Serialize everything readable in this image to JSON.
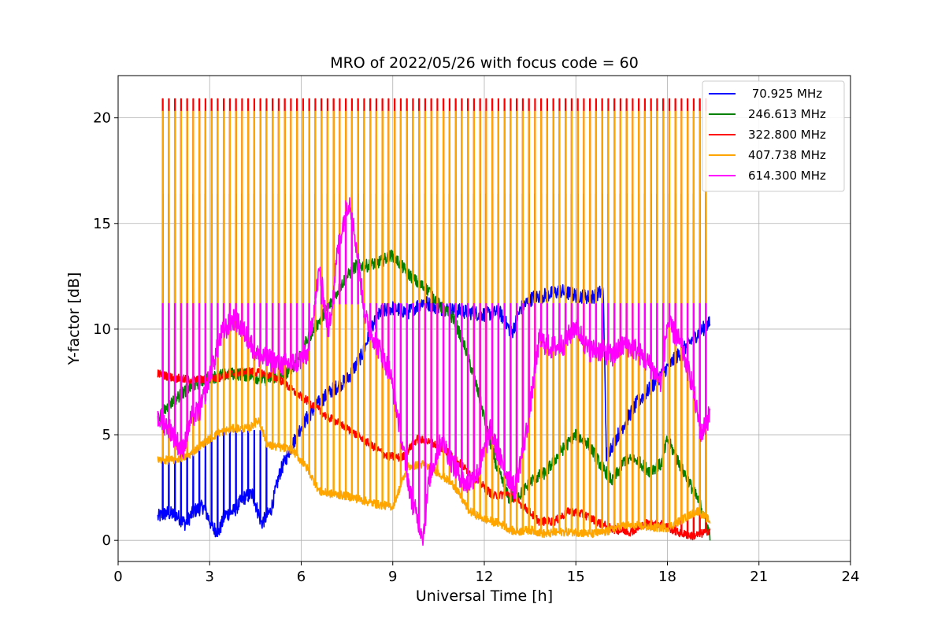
{
  "chart_data": {
    "type": "line",
    "title": "MRO of 2022/05/26 with focus code = 60",
    "xlabel": "Universal Time [h]",
    "ylabel": "Y-factor [dB]",
    "xlim": [
      0,
      24
    ],
    "ylim": [
      -1,
      22
    ],
    "xticks": [
      0,
      3,
      6,
      9,
      12,
      15,
      18,
      21,
      24
    ],
    "xtick_labels": [
      "0",
      "3",
      "6",
      "9",
      "12",
      "15",
      "18",
      "21",
      "24"
    ],
    "yticks": [
      0,
      5,
      10,
      15,
      20
    ],
    "ytick_labels": [
      "0",
      "5",
      "10",
      "15",
      "20"
    ],
    "grid": true,
    "legend_position": "top-right",
    "calibration_pulses": {
      "start_hour": 1.45,
      "end_hour": 19.35,
      "interval_hours": 0.2,
      "peak_values": {
        "70.925 MHz": 5.2,
        "246.613 MHz": 16.4,
        "322.800 MHz": 20.9,
        "407.738 MHz": 20.3,
        "614.300 MHz": 11.2
      },
      "note_visible_until_hour": {
        "70.925 MHz": 5.0
      }
    },
    "series": [
      {
        "name": " 70.925 MHz",
        "color": "#0000ff",
        "x": [
          1.3,
          1.6,
          1.9,
          2.2,
          2.5,
          2.8,
          3.1,
          3.3,
          3.5,
          3.8,
          4.1,
          4.4,
          4.7,
          5.0,
          5.3,
          5.6,
          6.0,
          6.5,
          7.0,
          7.5,
          8.0,
          8.3,
          8.6,
          9.0,
          9.5,
          10.0,
          10.5,
          11.0,
          11.5,
          12.0,
          12.5,
          12.9,
          13.2,
          13.6,
          14.0,
          14.5,
          15.0,
          15.5,
          15.9,
          16.0,
          16.3,
          16.7,
          17.0,
          17.5,
          18.0,
          18.5,
          19.0,
          19.4
        ],
        "y": [
          1.1,
          1.3,
          1.2,
          0.8,
          1.4,
          1.6,
          0.6,
          0.4,
          1.2,
          1.4,
          2.0,
          2.2,
          0.8,
          1.4,
          3.2,
          4.2,
          5.4,
          6.4,
          7.1,
          7.6,
          8.8,
          10.0,
          10.8,
          11.0,
          10.8,
          11.3,
          11.0,
          10.9,
          10.8,
          10.7,
          10.8,
          9.8,
          11.0,
          11.5,
          11.6,
          11.8,
          11.6,
          11.5,
          11.8,
          4.0,
          4.8,
          5.8,
          6.5,
          7.3,
          8.2,
          9.0,
          9.8,
          10.3
        ]
      },
      {
        "name": "246.613 MHz",
        "color": "#008000",
        "x": [
          1.3,
          1.8,
          2.3,
          2.8,
          3.3,
          3.8,
          4.3,
          4.8,
          5.3,
          5.6,
          5.9,
          6.2,
          6.6,
          7.0,
          7.4,
          7.8,
          8.2,
          8.6,
          9.0,
          9.4,
          9.8,
          10.2,
          10.6,
          11.0,
          11.4,
          11.8,
          12.1,
          12.4,
          12.8,
          13.2,
          13.6,
          14.0,
          14.5,
          15.0,
          15.4,
          15.8,
          16.2,
          16.6,
          17.0,
          17.4,
          17.8,
          18.0,
          18.4,
          18.8,
          19.2,
          19.4
        ],
        "y": [
          5.8,
          6.6,
          7.2,
          7.6,
          7.8,
          7.9,
          7.8,
          7.6,
          7.8,
          8.0,
          8.6,
          9.5,
          10.4,
          11.3,
          12.3,
          13.0,
          13.0,
          13.2,
          13.5,
          12.8,
          12.2,
          11.8,
          11.0,
          10.5,
          9.0,
          7.0,
          5.2,
          3.5,
          2.0,
          2.2,
          2.9,
          3.2,
          4.2,
          5.0,
          4.6,
          3.6,
          2.8,
          3.8,
          3.8,
          3.3,
          3.6,
          4.8,
          3.6,
          2.5,
          1.3,
          0.2
        ]
      },
      {
        "name": "322.800 MHz",
        "color": "#ff0000",
        "x": [
          1.3,
          1.8,
          2.3,
          2.8,
          3.3,
          3.8,
          4.3,
          4.8,
          5.3,
          5.8,
          6.3,
          6.8,
          7.3,
          7.8,
          8.3,
          8.8,
          9.3,
          9.8,
          10.3,
          10.8,
          11.3,
          11.8,
          12.3,
          12.8,
          13.3,
          13.8,
          14.3,
          14.8,
          15.3,
          15.8,
          16.3,
          16.8,
          17.3,
          17.8,
          18.3,
          18.8,
          19.1,
          19.4
        ],
        "y": [
          7.9,
          7.7,
          7.6,
          7.6,
          7.7,
          7.9,
          8.0,
          7.9,
          7.6,
          7.0,
          6.5,
          5.9,
          5.5,
          5.0,
          4.5,
          4.0,
          3.9,
          4.8,
          4.6,
          4.2,
          3.5,
          2.8,
          2.1,
          2.2,
          1.6,
          0.9,
          0.9,
          1.4,
          1.2,
          0.8,
          0.5,
          0.4,
          0.8,
          0.8,
          0.4,
          0.2,
          0.3,
          0.5
        ]
      },
      {
        "name": "407.738 MHz",
        "color": "#ffa500",
        "x": [
          1.3,
          1.8,
          2.3,
          2.8,
          3.3,
          3.8,
          4.3,
          4.6,
          4.9,
          5.3,
          5.7,
          6.2,
          6.6,
          7.0,
          7.5,
          8.0,
          8.5,
          9.0,
          9.5,
          10.0,
          10.5,
          11.0,
          11.5,
          12.0,
          12.5,
          13.0,
          13.5,
          14.0,
          14.5,
          15.0,
          15.5,
          16.0,
          16.5,
          17.0,
          17.5,
          18.0,
          18.5,
          19.0,
          19.4
        ],
        "y": [
          3.8,
          3.8,
          4.0,
          4.6,
          5.1,
          5.3,
          5.3,
          5.7,
          4.5,
          4.4,
          4.3,
          3.4,
          2.3,
          2.2,
          2.1,
          1.9,
          1.7,
          1.6,
          3.5,
          3.6,
          3.2,
          2.6,
          1.4,
          1.0,
          0.8,
          0.4,
          0.5,
          0.3,
          0.4,
          0.4,
          0.3,
          0.4,
          0.7,
          0.7,
          0.6,
          0.6,
          1.0,
          1.4,
          0.9
        ]
      },
      {
        "name": "614.300 MHz",
        "color": "#ff00ff",
        "x": [
          1.3,
          1.7,
          2.1,
          2.4,
          2.7,
          3.0,
          3.4,
          3.8,
          4.2,
          4.6,
          5.0,
          5.4,
          5.8,
          6.2,
          6.6,
          6.9,
          7.2,
          7.5,
          7.6,
          7.8,
          8.1,
          8.5,
          8.9,
          9.2,
          9.6,
          10.0,
          10.2,
          10.6,
          11.0,
          11.4,
          11.8,
          12.2,
          12.6,
          13.0,
          13.4,
          13.8,
          14.2,
          14.6,
          15.0,
          15.4,
          15.8,
          16.2,
          16.6,
          17.0,
          17.4,
          17.8,
          18.0,
          18.4,
          18.8,
          19.1,
          19.4
        ],
        "y": [
          5.8,
          5.3,
          4.2,
          5.8,
          6.2,
          7.8,
          9.8,
          10.5,
          9.7,
          8.7,
          8.5,
          8.3,
          8.4,
          8.8,
          12.8,
          9.8,
          13.8,
          15.9,
          16.0,
          14.0,
          10.5,
          9.2,
          8.0,
          5.6,
          2.0,
          0.2,
          3.0,
          4.8,
          3.5,
          2.6,
          3.2,
          5.2,
          3.5,
          2.4,
          5.3,
          9.5,
          9.1,
          9.3,
          10.2,
          9.0,
          9.0,
          8.7,
          9.3,
          9.0,
          8.3,
          7.5,
          10.3,
          9.4,
          7.5,
          5.0,
          6.0
        ]
      }
    ]
  }
}
